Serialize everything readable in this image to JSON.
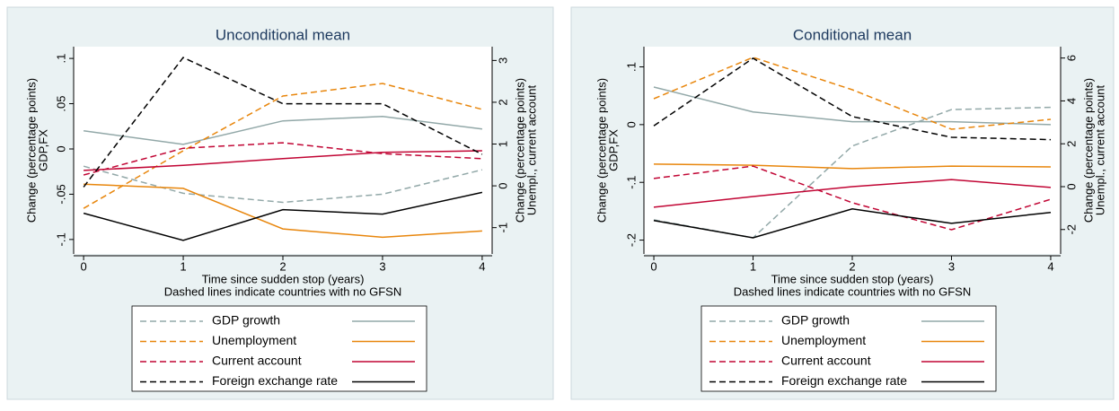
{
  "chart_data": [
    {
      "type": "line",
      "title": "Unconditional mean",
      "xlabel": "Time since sudden stop (years)",
      "note": "Dashed lines indicate countries with no GFSN",
      "ylabel": [
        "Change (percentage points)",
        "GDP,FX"
      ],
      "y2label": [
        "Change (percentage points)",
        "Unempl., current account"
      ],
      "x": [
        0,
        1,
        2,
        3,
        4
      ],
      "xlim": [
        -0.1,
        4.1
      ],
      "xticks": [
        0,
        1,
        2,
        3,
        4
      ],
      "ylim": [
        -0.116,
        0.113
      ],
      "yticks": [
        {
          "value": -0.1,
          "label": "-.1"
        },
        {
          "value": -0.05,
          "label": "-.05"
        },
        0,
        {
          "value": 0.05,
          "label": ".05"
        },
        {
          "value": 0.1,
          "label": ".1"
        }
      ],
      "y2lim": [
        -1.63,
        3.33
      ],
      "y2ticks": [
        -1,
        0,
        1,
        2,
        3
      ],
      "series": [
        {
          "name": "GDP growth",
          "color": "#92a8a8",
          "dashed": true,
          "values": [
            -0.019,
            -0.049,
            -0.059,
            -0.05,
            -0.023
          ]
        },
        {
          "color": "#92a8a8",
          "dashed": false,
          "values": [
            0.02,
            0.005,
            0.031,
            0.036,
            0.022
          ]
        },
        {
          "name": "Unemployment",
          "color": "#e8860c",
          "dashed": true,
          "axis": "y2",
          "values": [
            -0.54,
            0.84,
            2.15,
            2.45,
            1.83
          ]
        },
        {
          "color": "#e8860c",
          "dashed": false,
          "axis": "y2",
          "values": [
            0.04,
            -0.06,
            -1.03,
            -1.23,
            -1.08
          ]
        },
        {
          "name": "Current account",
          "color": "#c10534",
          "dashed": true,
          "axis": "y2",
          "values": [
            0.26,
            0.9,
            1.03,
            0.77,
            0.65
          ]
        },
        {
          "color": "#c10534",
          "dashed": false,
          "axis": "y2",
          "values": [
            0.37,
            0.49,
            0.65,
            0.8,
            0.84
          ]
        },
        {
          "name": "Foreign exchange rate",
          "color": "#000000",
          "dashed": true,
          "values": [
            -0.042,
            0.101,
            0.05,
            0.05,
            -0.006
          ]
        },
        {
          "color": "#000000",
          "dashed": false,
          "values": [
            -0.071,
            -0.101,
            -0.067,
            -0.072,
            -0.048
          ]
        }
      ]
    },
    {
      "type": "line",
      "title": "Conditional mean",
      "xlabel": "Time since sudden stop (years)",
      "note": "Dashed lines indicate countries with no GFSN",
      "ylabel": [
        "Change (percentage points)",
        "GDP,FX"
      ],
      "y2label": [
        "Change (percentage points)",
        "Unempl., current account"
      ],
      "x": [
        0,
        1,
        2,
        3,
        4
      ],
      "xlim": [
        -0.1,
        4.1
      ],
      "xticks": [
        0,
        1,
        2,
        3,
        4
      ],
      "ylim": [
        -0.224,
        0.135
      ],
      "yticks": [
        {
          "value": -0.2,
          "label": "-.2"
        },
        {
          "value": -0.1,
          "label": "-.1"
        },
        0,
        {
          "value": 0.1,
          "label": ".1"
        }
      ],
      "y2lim": [
        -3.14,
        6.53
      ],
      "y2ticks": [
        -2,
        0,
        2,
        4,
        6
      ],
      "series": [
        {
          "name": "GDP growth",
          "color": "#92a8a8",
          "dashed": true,
          "values": [
            -0.165,
            -0.196,
            -0.037,
            0.026,
            0.03
          ]
        },
        {
          "color": "#92a8a8",
          "dashed": false,
          "values": [
            0.065,
            0.022,
            0.005,
            0.005,
            0.0
          ]
        },
        {
          "name": "Unemployment",
          "color": "#e8860c",
          "dashed": true,
          "axis": "y2",
          "values": [
            4.1,
            6.03,
            4.52,
            2.68,
            3.14
          ]
        },
        {
          "color": "#e8860c",
          "dashed": false,
          "axis": "y2",
          "values": [
            1.05,
            1.0,
            0.84,
            0.96,
            0.92
          ]
        },
        {
          "name": "Current account",
          "color": "#c10534",
          "dashed": true,
          "axis": "y2",
          "values": [
            0.38,
            0.96,
            -0.75,
            -2.01,
            -0.59
          ]
        },
        {
          "color": "#c10534",
          "dashed": false,
          "axis": "y2",
          "values": [
            -0.96,
            -0.46,
            0.0,
            0.33,
            -0.04
          ]
        },
        {
          "name": "Foreign exchange rate",
          "color": "#000000",
          "dashed": true,
          "values": [
            -0.002,
            0.115,
            0.014,
            -0.022,
            -0.026
          ]
        },
        {
          "color": "#000000",
          "dashed": false,
          "values": [
            -0.166,
            -0.196,
            -0.146,
            -0.171,
            -0.152
          ]
        }
      ]
    }
  ]
}
